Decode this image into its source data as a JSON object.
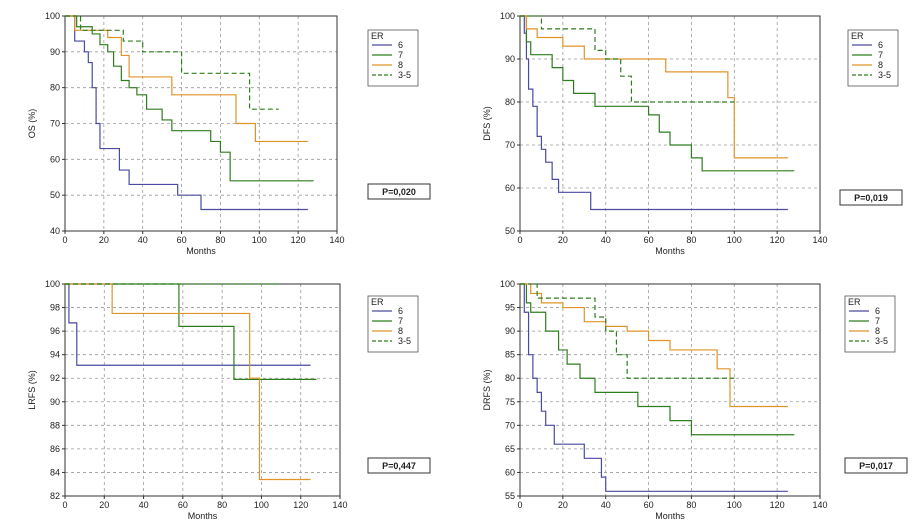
{
  "colors": {
    "6": "#4a4aa0",
    "7": "#2e7d1e",
    "8": "#e0932a",
    "3-5": "#2e7d1e",
    "grid": "#9a9a9a",
    "axis": "#333333"
  },
  "chart_data": [
    {
      "type": "line",
      "panel": "top-left",
      "xlabel": "Months",
      "ylabel": "OS (%)",
      "xlim": [
        0,
        140
      ],
      "ylim": [
        40,
        100
      ],
      "xticks": [
        "0",
        "20",
        "40",
        "60",
        "80",
        "100",
        "120",
        "140"
      ],
      "yticks": [
        "40",
        "50",
        "60",
        "70",
        "80",
        "90",
        "100"
      ],
      "legend_title": "ER",
      "legend_position": "top-right",
      "pvalue": "P=0,020",
      "grid": true,
      "series": [
        {
          "name": "6",
          "dash": false,
          "x": [
            0,
            5,
            8,
            10,
            12,
            14,
            16,
            18,
            22,
            28,
            33,
            38,
            48,
            58,
            70,
            125
          ],
          "y": [
            100,
            93,
            93,
            90,
            87,
            80,
            70,
            63,
            63,
            57,
            53,
            53,
            53,
            50,
            46,
            46
          ]
        },
        {
          "name": "7",
          "dash": false,
          "x": [
            0,
            6,
            14,
            18,
            22,
            25,
            29,
            33,
            37,
            42,
            50,
            55,
            66,
            75,
            80,
            85,
            128
          ],
          "y": [
            100,
            97,
            95,
            92,
            90,
            86,
            82,
            80,
            78,
            74,
            71,
            68,
            68,
            65,
            62,
            54,
            54
          ]
        },
        {
          "name": "8",
          "dash": false,
          "x": [
            0,
            5,
            15,
            22,
            29,
            33,
            45,
            55,
            60,
            88,
            98,
            125
          ],
          "y": [
            100,
            96,
            96,
            94,
            89,
            83,
            83,
            78,
            78,
            70,
            65,
            65
          ]
        },
        {
          "name": "3-5",
          "dash": true,
          "x": [
            0,
            8,
            20,
            30,
            40,
            60,
            70,
            95,
            100,
            110
          ],
          "y": [
            100,
            96,
            96,
            93,
            90,
            84,
            84,
            74,
            74,
            74
          ]
        }
      ]
    },
    {
      "type": "line",
      "panel": "top-right",
      "xlabel": "Months",
      "ylabel": "DFS (%)",
      "xlim": [
        0,
        140
      ],
      "ylim": [
        50,
        100
      ],
      "xticks": [
        "0",
        "20",
        "40",
        "60",
        "80",
        "100",
        "120",
        "140"
      ],
      "yticks": [
        "50",
        "60",
        "70",
        "80",
        "90",
        "100"
      ],
      "legend_title": "ER",
      "legend_position": "top-right",
      "pvalue": "P=0,019",
      "grid": true,
      "series": [
        {
          "name": "6",
          "dash": false,
          "x": [
            0,
            2,
            3,
            4,
            6,
            8,
            10,
            12,
            15,
            18,
            24,
            33,
            125
          ],
          "y": [
            100,
            96,
            90,
            83,
            79,
            72,
            69,
            66,
            62,
            59,
            59,
            55,
            55
          ]
        },
        {
          "name": "7",
          "dash": false,
          "x": [
            0,
            3,
            5,
            8,
            15,
            20,
            25,
            35,
            45,
            60,
            65,
            70,
            80,
            85,
            128
          ],
          "y": [
            100,
            94,
            91,
            91,
            88,
            85,
            82,
            79,
            79,
            77,
            73,
            70,
            67,
            64,
            64
          ]
        },
        {
          "name": "8",
          "dash": false,
          "x": [
            0,
            3,
            8,
            20,
            30,
            45,
            68,
            92,
            97,
            100,
            125
          ],
          "y": [
            100,
            97,
            95,
            93,
            90,
            90,
            87,
            87,
            81,
            67,
            67
          ]
        },
        {
          "name": "3-5",
          "dash": true,
          "x": [
            0,
            10,
            25,
            35,
            40,
            47,
            52,
            60,
            100
          ],
          "y": [
            100,
            97,
            97,
            92,
            90,
            86,
            80,
            80,
            80
          ]
        }
      ]
    },
    {
      "type": "line",
      "panel": "bottom-left",
      "xlabel": "Months",
      "ylabel": "LRFS (%)",
      "xlim": [
        0,
        140
      ],
      "ylim": [
        82,
        100
      ],
      "xticks": [
        "0",
        "20",
        "40",
        "60",
        "80",
        "100",
        "120",
        "140"
      ],
      "yticks": [
        "82",
        "84",
        "86",
        "88",
        "90",
        "92",
        "94",
        "96",
        "98",
        "100"
      ],
      "legend_title": "ER",
      "legend_position": "top-right",
      "pvalue": "P=0,447",
      "grid": true,
      "series": [
        {
          "name": "6",
          "dash": false,
          "x": [
            0,
            2,
            6,
            125
          ],
          "y": [
            100,
            96.7,
            93.1,
            93.1
          ]
        },
        {
          "name": "7",
          "dash": false,
          "x": [
            0,
            58,
            86,
            128
          ],
          "y": [
            100,
            96.4,
            91.9,
            91.9
          ]
        },
        {
          "name": "8",
          "dash": false,
          "x": [
            0,
            24,
            94,
            99,
            125
          ],
          "y": [
            100,
            97.5,
            92,
            83.4,
            83.4
          ]
        },
        {
          "name": "3-5",
          "dash": true,
          "x": [
            0,
            110
          ],
          "y": [
            100,
            100
          ]
        }
      ]
    },
    {
      "type": "line",
      "panel": "bottom-right",
      "xlabel": "Months",
      "ylabel": "DRFS (%)",
      "xlim": [
        0,
        140
      ],
      "ylim": [
        55,
        100
      ],
      "xticks": [
        "0",
        "20",
        "40",
        "60",
        "80",
        "100",
        "120",
        "140"
      ],
      "yticks": [
        "55",
        "60",
        "65",
        "70",
        "75",
        "80",
        "85",
        "90",
        "95",
        "100"
      ],
      "legend_title": "ER",
      "legend_position": "top-right",
      "pvalue": "P=0,017",
      "grid": true,
      "series": [
        {
          "name": "6",
          "dash": false,
          "x": [
            0,
            2,
            4,
            6,
            8,
            10,
            12,
            16,
            30,
            38,
            40,
            125
          ],
          "y": [
            100,
            94,
            85,
            80,
            77,
            73,
            70,
            66,
            63,
            59,
            56,
            56
          ]
        },
        {
          "name": "7",
          "dash": false,
          "x": [
            0,
            3,
            5,
            12,
            18,
            22,
            28,
            35,
            45,
            55,
            65,
            70,
            80,
            128
          ],
          "y": [
            100,
            96,
            94,
            90,
            86,
            83,
            80,
            77,
            77,
            74,
            74,
            71,
            68,
            68
          ]
        },
        {
          "name": "8",
          "dash": false,
          "x": [
            0,
            5,
            10,
            20,
            30,
            40,
            50,
            60,
            70,
            92,
            98,
            125
          ],
          "y": [
            100,
            98,
            96,
            95,
            92,
            91,
            90,
            88,
            86,
            82,
            74,
            74
          ]
        },
        {
          "name": "3-5",
          "dash": true,
          "x": [
            0,
            8,
            25,
            35,
            40,
            45,
            50,
            100
          ],
          "y": [
            100,
            97,
            97,
            93,
            90,
            85,
            80,
            80
          ]
        }
      ]
    }
  ]
}
